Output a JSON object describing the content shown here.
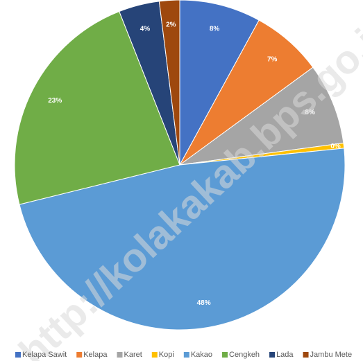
{
  "chart_data": {
    "type": "pie",
    "categories": [
      "Kelapa Sawit",
      "Kelapa",
      "Karet",
      "Kopi",
      "Kakao",
      "Cengkeh",
      "Lada",
      "Jambu Mete"
    ],
    "values": [
      8,
      7,
      8,
      0.5,
      48,
      23,
      4,
      2
    ],
    "value_labels": [
      "8%",
      "7%",
      "8%",
      "0%",
      "48%",
      "23%",
      "4%",
      "2%"
    ],
    "colors": [
      "#4472c4",
      "#ed7d31",
      "#a5a5a5",
      "#ffc000",
      "#5b9bd5",
      "#70ad47",
      "#264478",
      "#9e480e"
    ],
    "legend": "bottom",
    "watermark": "http://kolakakab.bps.go.id"
  }
}
